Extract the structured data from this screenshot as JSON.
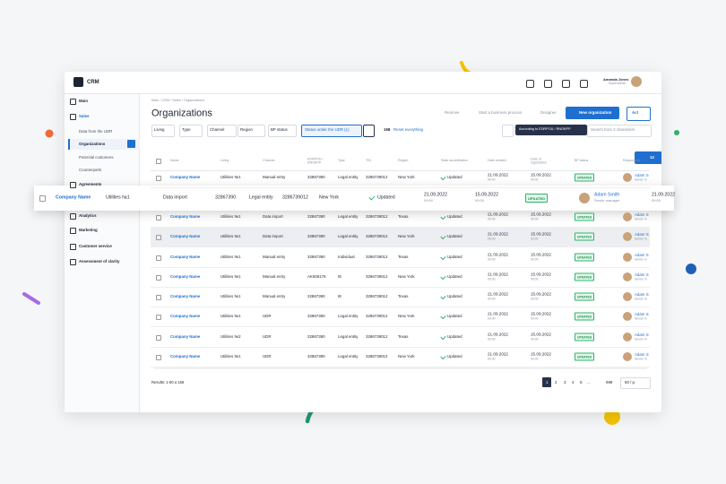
{
  "header": {
    "logo": "CRM",
    "user_name": "Amanda Jones",
    "user_role": "Superadmin"
  },
  "sidebar": {
    "items": [
      "Main",
      "Sales",
      "Agreements",
      "Analytics",
      "Marketing",
      "Customer service",
      "Assessment of clarity"
    ],
    "sales_items": [
      "Data from the UDR",
      "Organizations",
      "Potential customers",
      "Counterparts"
    ]
  },
  "page": {
    "breadcrumb": "Main / CRM / Sales / Organizations",
    "title": "Organizations",
    "actions": [
      "Remove",
      "Start a business process",
      "Designer"
    ],
    "primary_button": "New organization",
    "act_button": "Act"
  },
  "filters": {
    "items": [
      "Living",
      "Type",
      "Channel",
      "Region",
      "BP status",
      "Status under the UDR (1)"
    ],
    "count": "168",
    "reset": "Reset everything",
    "mode": "According to EDRPOU / RNOKPP",
    "search_placeholder": "Search from 3 characters"
  },
  "notification_count": "12",
  "table": {
    "columns": [
      "Name",
      "Living",
      "Channel",
      "EDRPOU / RNOKPP",
      "Type",
      "TIN",
      "Region",
      "State accreditation",
      "Date created",
      "Date of registration",
      "BP status",
      "Responsible"
    ],
    "rows": [
      [
        "Company Name",
        "Utilities №1",
        "Manual entry",
        "32867390",
        "Legal entity",
        "3286739012",
        "New York",
        "Updated",
        "21.09.2022",
        "09:00",
        "15.09.2022",
        "09:00",
        "UPDATED",
        "Adam S",
        "Senior m"
      ],
      [
        "Company Name",
        "Utilities №1",
        "Data import",
        "32867390",
        "Legal entity",
        "3286739012",
        "Texas",
        "Updated",
        "21.09.2022",
        "09:00",
        "15.09.2022",
        "09:00",
        "UPDATED",
        "Adam S",
        "Senior m"
      ],
      [
        "Company Name",
        "Utilities №1",
        "Data import",
        "32867390",
        "Legal entity",
        "3286739012",
        "New York",
        "Updated",
        "21.09.2022",
        "09:00",
        "15.09.2022",
        "09:00",
        "UPDATED",
        "Adam S",
        "Senior m"
      ],
      [
        "Company Name",
        "Utilities №1",
        "Manual entry",
        "32867390",
        "Individual",
        "3286739012",
        "Texas",
        "Updated",
        "21.09.2022",
        "09:00",
        "15.09.2022",
        "09:00",
        "UPDATED",
        "Adam S",
        "Senior m"
      ],
      [
        "Company Name",
        "Utilities №1",
        "Manual entry",
        "AK936176",
        "IE",
        "3286739012",
        "New York",
        "Updated",
        "21.09.2022",
        "09:00",
        "15.09.2022",
        "09:00",
        "UPDATED",
        "Adam S",
        "Senior m"
      ],
      [
        "Company Name",
        "Utilities №1",
        "Manual entry",
        "32867390",
        "IE",
        "3286739012",
        "Texas",
        "Updated",
        "21.09.2022",
        "09:00",
        "15.09.2022",
        "09:00",
        "UPDATED",
        "Adam S",
        "Senior m"
      ],
      [
        "Company Name",
        "Utilities №1",
        "UDR",
        "32867390",
        "Legal entity",
        "3286739012",
        "New York",
        "Updated",
        "21.09.2022",
        "09:00",
        "15.09.2022",
        "09:00",
        "UPDATED",
        "Adam S",
        "Senior m"
      ],
      [
        "Company Name",
        "Utilities №2",
        "UDR",
        "32867390",
        "Legal entity",
        "3286739012",
        "Texas",
        "Updated",
        "21.09.2022",
        "09:00",
        "15.09.2022",
        "09:00",
        "UPDATED",
        "Adam S",
        "Senior m"
      ],
      [
        "Company Name",
        "Utilities №1",
        "UDR",
        "32867390",
        "Legal entity",
        "3286739012",
        "New York",
        "Updated",
        "21.09.2022",
        "09:00",
        "15.09.2022",
        "09:00",
        "UPDATED",
        "Adam S",
        "Senior m"
      ]
    ]
  },
  "floating_row": [
    "Company Name",
    "Utilities №1",
    "Data import",
    "32867390",
    "Legal entity",
    "3286739012",
    "New York",
    "Updated",
    "21.09.2022",
    "09:00",
    "15.09.2022",
    "09:00",
    "UPDATED",
    "Adam Smith",
    "Senior manager",
    "21.09.2022",
    "09:00"
  ],
  "pagination": {
    "results": "Results: 1-50 a 168",
    "pages": [
      "1",
      "2",
      "3",
      "4",
      "5",
      "...",
      "999"
    ],
    "per_page": "50 / p."
  }
}
